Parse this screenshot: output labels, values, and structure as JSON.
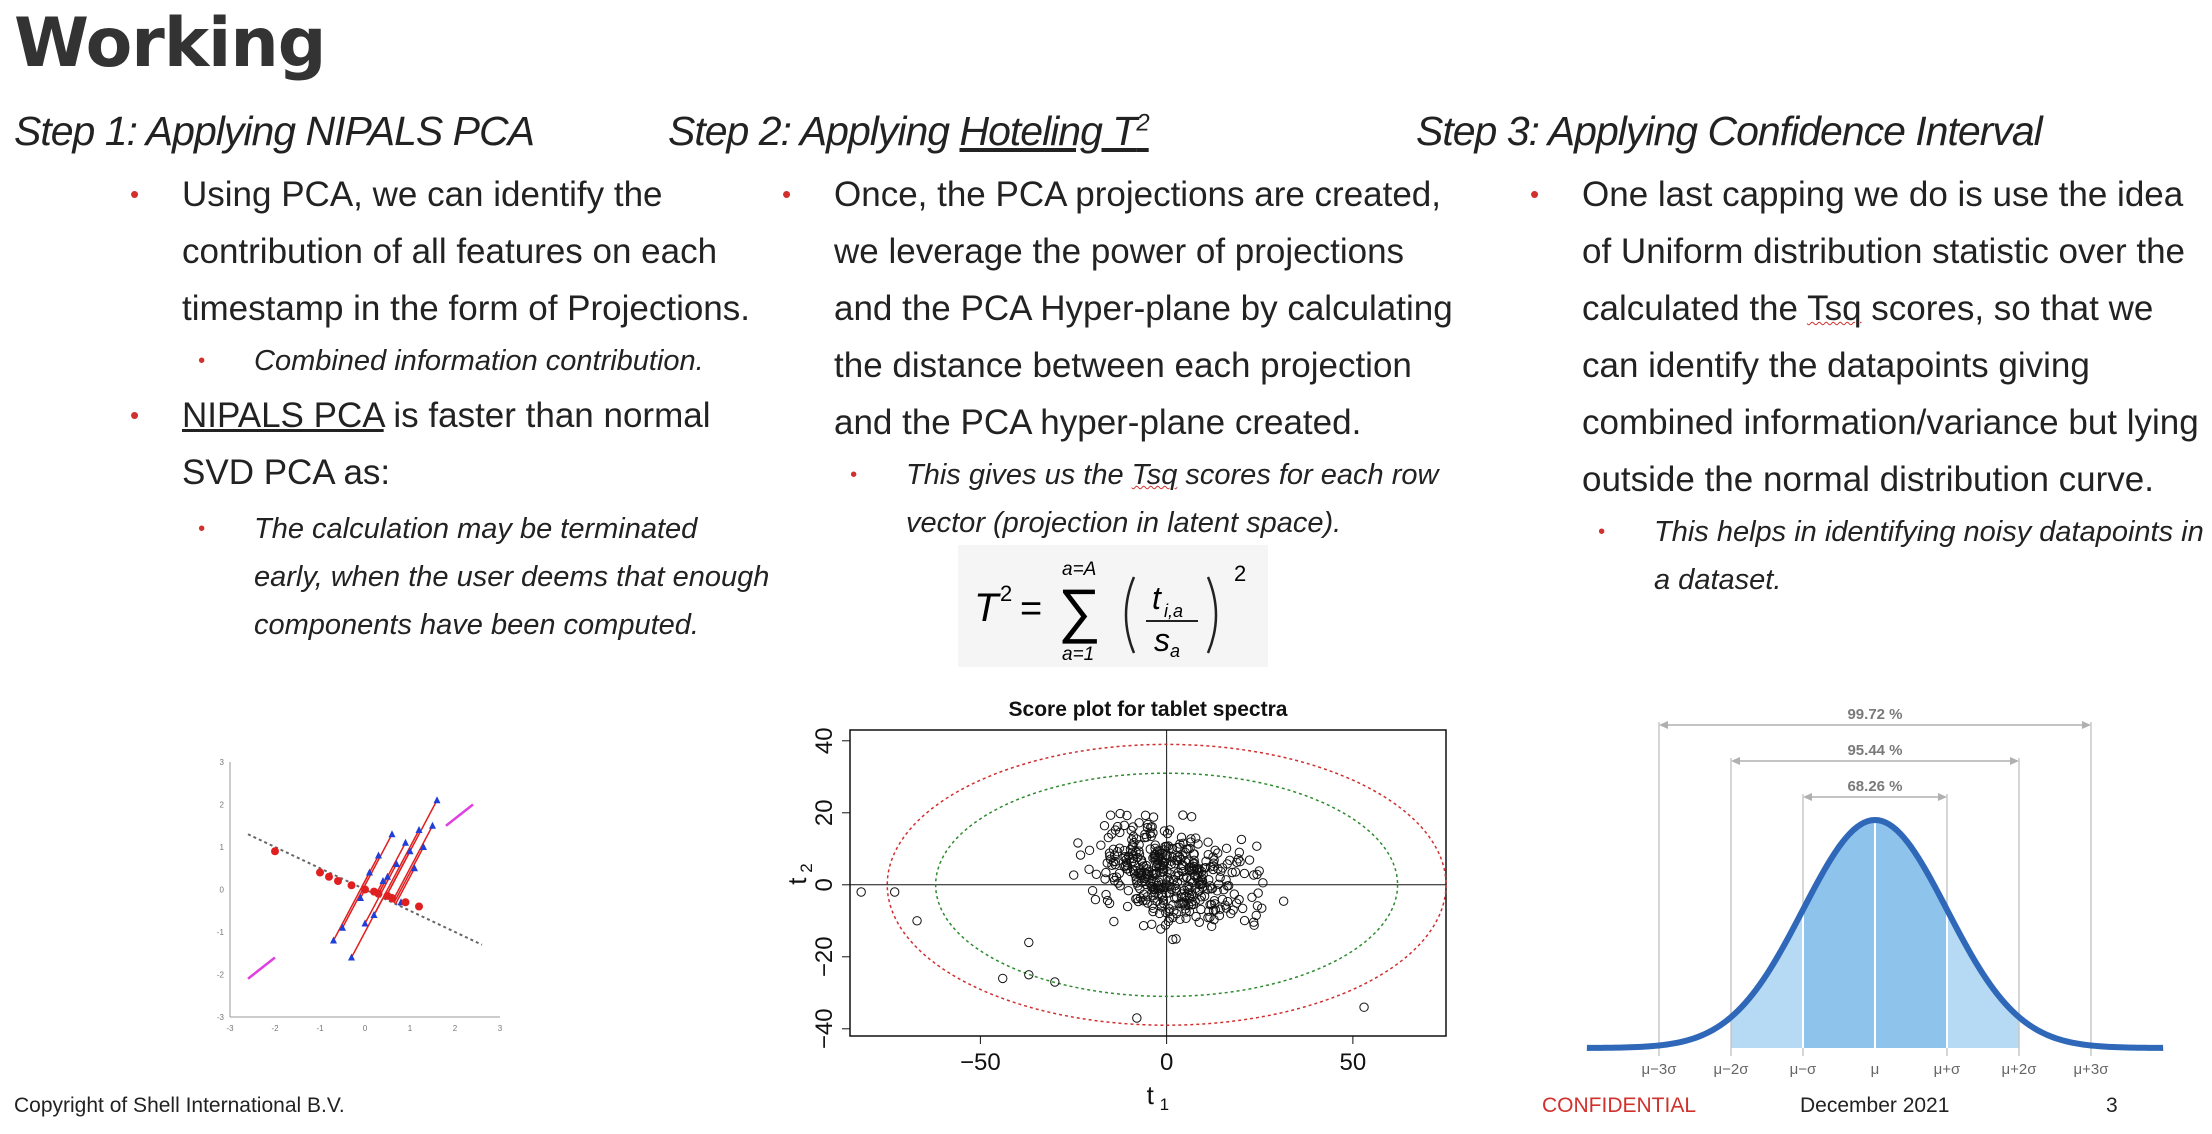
{
  "slide": {
    "title": "Working",
    "steps": [
      {
        "heading_prefix": "Step 1: Applying NIPALS PCA",
        "bullets": [
          {
            "text": "Using PCA, we can identify the contribution of all features on each timestamp in the form of Projections.",
            "sub": [
              "Combined information contribution."
            ]
          },
          {
            "link": "NIPALS PCA",
            "text": " is faster than normal SVD PCA as:",
            "sub": [
              "The calculation may be terminated early, when the user deems that enough components have been computed."
            ]
          }
        ]
      },
      {
        "heading_prefix": "Step 2: Applying ",
        "heading_link": "Hoteling T",
        "heading_sup": "2",
        "bullets": [
          {
            "text": "Once, the PCA projections are created, we leverage the power of projections and the PCA Hyper-plane by calculating the distance between each projection and the PCA hyper-plane created.",
            "sub_prefix": "This gives us the ",
            "sub_mark": "Tsq",
            "sub_suffix": " scores for each row vector (projection in latent space)."
          }
        ]
      },
      {
        "heading_prefix": "Step 3: Applying Confidence Interval",
        "bullets": [
          {
            "text_prefix": "One last capping we do is use the idea of Uniform distribution statistic over the calculated the ",
            "text_mark": "Tsq",
            "text_suffix": " scores, so that we can identify the datapoints giving combined information/variance but lying outside the normal distribution curve.",
            "sub": [
              "This helps in identifying noisy datapoints in a dataset."
            ]
          }
        ]
      }
    ]
  },
  "formula": {
    "lhs": "T",
    "lhs_sup": "2",
    "sum_top": "a=A",
    "sum_bottom": "a=1",
    "numerator": "t",
    "numerator_sub": "i,a",
    "denominator": "s",
    "denominator_sub": "a",
    "outer_sup": "2"
  },
  "chart_data": [
    {
      "type": "scatter",
      "title": "",
      "description_hidden": false,
      "series": [
        {
          "name": "",
          "color": "#1f3fd6",
          "points": [
            [
              -0.3,
              -1.6
            ],
            [
              0.4,
              0.2
            ],
            [
              0.9,
              1.1
            ],
            [
              1.2,
              1.4
            ],
            [
              1.6,
              2.1
            ],
            [
              0.2,
              -0.6
            ],
            [
              -0.5,
              -0.9
            ],
            [
              0.7,
              0.6
            ],
            [
              1.0,
              0.9
            ],
            [
              0.5,
              0.3
            ],
            [
              1.3,
              1.0
            ],
            [
              -0.1,
              -0.2
            ],
            [
              0.8,
              -0.3
            ],
            [
              0.3,
              0.8
            ],
            [
              1.5,
              1.5
            ],
            [
              0.1,
              0.4
            ],
            [
              -0.7,
              -1.2
            ],
            [
              0.6,
              1.3
            ],
            [
              1.1,
              0.5
            ],
            [
              0.0,
              -0.8
            ]
          ]
        },
        {
          "name": "",
          "color": "#e02020",
          "points": [
            [
              -2.0,
              0.9
            ],
            [
              -1.0,
              0.4
            ],
            [
              -0.6,
              0.2
            ],
            [
              -0.3,
              0.1
            ],
            [
              0.0,
              0.0
            ],
            [
              0.3,
              -0.1
            ],
            [
              0.6,
              -0.2
            ],
            [
              0.9,
              -0.3
            ],
            [
              1.2,
              -0.4
            ],
            [
              -0.8,
              0.3
            ],
            [
              0.2,
              -0.05
            ],
            [
              0.5,
              -0.15
            ]
          ]
        }
      ],
      "lines": [
        {
          "name": "",
          "color": "#666666",
          "style": "dotted",
          "from": [
            -2.6,
            1.3
          ],
          "to": [
            2.6,
            -1.3
          ]
        },
        {
          "name": "",
          "color": "#e040e0",
          "style": "solid",
          "from": [
            -2.6,
            -2.1
          ],
          "to": [
            -2.0,
            -1.6
          ]
        },
        {
          "name": "",
          "color": "#e040e0",
          "style": "solid",
          "from": [
            1.8,
            1.5
          ],
          "to": [
            2.4,
            2.0
          ]
        }
      ],
      "xlim": [
        -3,
        3
      ],
      "ylim": [
        -3,
        3
      ],
      "xticks": [
        "-3",
        "-2",
        "-1",
        "0",
        "1",
        "2",
        "3"
      ],
      "yticks": [
        "3",
        "2",
        "1",
        "0",
        "-1",
        "-2",
        "-3"
      ]
    },
    {
      "type": "scatter",
      "title": "Score plot for tablet spectra",
      "xlabel": "t",
      "xlabel_sub": "1",
      "ylabel": "t",
      "ylabel_sub": "2",
      "xlim": [
        -85,
        75
      ],
      "ylim": [
        -42,
        43
      ],
      "xticks": [
        -50,
        0,
        50
      ],
      "yticks": [
        -40,
        -20,
        0,
        20,
        40
      ],
      "xtick_labels": [
        "−50",
        "0",
        "50"
      ],
      "ytick_labels": [
        "−40",
        "−20",
        "0",
        "20",
        "40"
      ],
      "ellipses": [
        {
          "name": "",
          "color": "#d03030",
          "cx": 0,
          "cy": 0,
          "rx": 75,
          "ry": 39
        },
        {
          "name": "",
          "color": "#2e8b2e",
          "cx": 0,
          "cy": 0,
          "rx": 62,
          "ry": 31
        }
      ],
      "points_seed": 7,
      "points_count": 420,
      "outliers": [
        [
          -82,
          -2
        ],
        [
          -73,
          -2
        ],
        [
          -67,
          -10
        ],
        [
          53,
          -34
        ],
        [
          -8,
          -37
        ],
        [
          -37,
          -25
        ],
        [
          -30,
          -27
        ],
        [
          -44,
          -26
        ],
        [
          -37,
          -16
        ]
      ]
    },
    {
      "type": "area",
      "title": "",
      "xticks": [
        "μ−3σ",
        "μ−2σ",
        "μ−σ",
        "μ",
        "μ+σ",
        "μ+2σ",
        "μ+3σ"
      ],
      "intervals": [
        {
          "label": "99.72 %",
          "from": -3,
          "to": 3
        },
        {
          "label": "95.44 %",
          "from": -2,
          "to": 2
        },
        {
          "label": "68.26 %",
          "from": -1,
          "to": 1
        }
      ],
      "curve_color": "#2f68b8",
      "fill_inner": "#8ec3ec",
      "fill_outer": "#b6d9f4"
    }
  ],
  "footer": {
    "copyright": "Copyright of Shell International B.V.",
    "confidential": "CONFIDENTIAL",
    "date": "December 2021",
    "page": "3"
  }
}
